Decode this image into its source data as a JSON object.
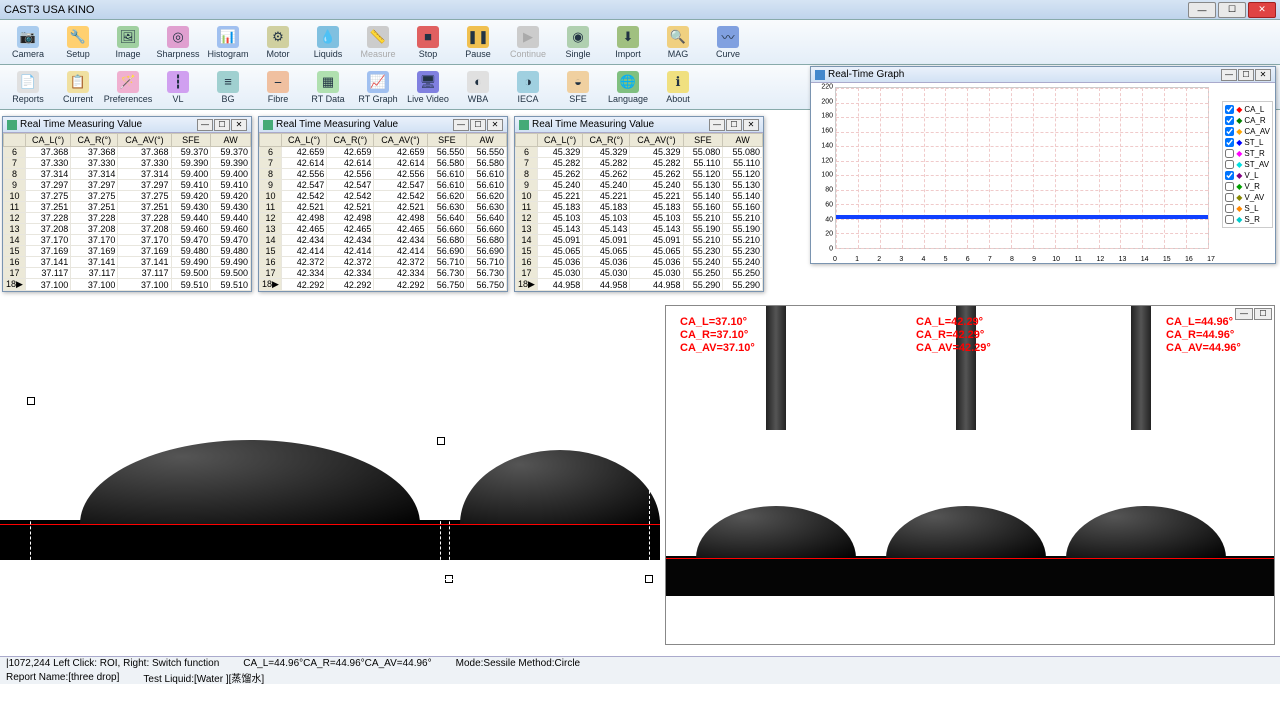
{
  "window": {
    "title": "CAST3  USA KINO"
  },
  "toolbars": {
    "row1": [
      {
        "label": "Camera",
        "icon": "📷",
        "color": "#aaccee"
      },
      {
        "label": "Setup",
        "icon": "🔧",
        "color": "#ffd070"
      },
      {
        "label": "Image",
        "icon": "🖼",
        "color": "#a0d0a0"
      },
      {
        "label": "Sharpness",
        "icon": "◎",
        "color": "#e0a0d0"
      },
      {
        "label": "Histogram",
        "icon": "📊",
        "color": "#a0c0f0"
      },
      {
        "label": "Motor",
        "icon": "⚙",
        "color": "#d0d0a0"
      },
      {
        "label": "Liquids",
        "icon": "💧",
        "color": "#80c0e0"
      },
      {
        "label": "Measure",
        "icon": "📏",
        "color": "#ccc",
        "dis": true
      },
      {
        "label": "Stop",
        "icon": "■",
        "color": "#e06060"
      },
      {
        "label": "Pause",
        "icon": "❚❚",
        "color": "#f0c050"
      },
      {
        "label": "Continue",
        "icon": "▶",
        "color": "#ccc",
        "dis": true
      },
      {
        "label": "Single",
        "icon": "◉",
        "color": "#b0d0b0"
      },
      {
        "label": "Import",
        "icon": "⬇",
        "color": "#a0c080"
      },
      {
        "label": "MAG",
        "icon": "🔍",
        "color": "#f0d080"
      },
      {
        "label": "Curve",
        "icon": "〰",
        "color": "#80a0e0"
      }
    ],
    "row2": [
      {
        "label": "Reports",
        "icon": "📄",
        "color": "#e0e0e0"
      },
      {
        "label": "Current",
        "icon": "📋",
        "color": "#f0e0a0"
      },
      {
        "label": "Preferences",
        "icon": "🪄",
        "color": "#f0b0d0"
      },
      {
        "label": "VL",
        "icon": "┇",
        "color": "#d0a0f0"
      },
      {
        "label": "BG",
        "icon": "≡",
        "color": "#a0d0d0"
      },
      {
        "label": "Fibre",
        "icon": "⎯",
        "color": "#f0c0a0"
      },
      {
        "label": "RT Data",
        "icon": "▦",
        "color": "#b0e0b0"
      },
      {
        "label": "RT Graph",
        "icon": "📈",
        "color": "#a0c0f0"
      },
      {
        "label": "Live Video",
        "icon": "🖥",
        "color": "#8080e0"
      },
      {
        "label": "WBA",
        "icon": "◐",
        "color": "#e0e0e0"
      },
      {
        "label": "IECA",
        "icon": "◑",
        "color": "#a0d0e0"
      },
      {
        "label": "SFE",
        "icon": "◒",
        "color": "#f0d0a0"
      },
      {
        "label": "Language",
        "icon": "🌐",
        "color": "#80c080"
      },
      {
        "label": "About",
        "icon": "ℹ",
        "color": "#f0e080"
      }
    ]
  },
  "panels": {
    "title": "Real Time Measuring Value",
    "headers": [
      "",
      "CA_L(°)",
      "CA_R(°)",
      "CA_AV(°)",
      "SFE",
      "AW"
    ],
    "p1": {
      "rows": [
        [
          "6",
          "37.368",
          "37.368",
          "37.368",
          "59.370",
          "59.370"
        ],
        [
          "7",
          "37.330",
          "37.330",
          "37.330",
          "59.390",
          "59.390"
        ],
        [
          "8",
          "37.314",
          "37.314",
          "37.314",
          "59.400",
          "59.400"
        ],
        [
          "9",
          "37.297",
          "37.297",
          "37.297",
          "59.410",
          "59.410"
        ],
        [
          "10",
          "37.275",
          "37.275",
          "37.275",
          "59.420",
          "59.420"
        ],
        [
          "11",
          "37.251",
          "37.251",
          "37.251",
          "59.430",
          "59.430"
        ],
        [
          "12",
          "37.228",
          "37.228",
          "37.228",
          "59.440",
          "59.440"
        ],
        [
          "13",
          "37.208",
          "37.208",
          "37.208",
          "59.460",
          "59.460"
        ],
        [
          "14",
          "37.170",
          "37.170",
          "37.170",
          "59.470",
          "59.470"
        ],
        [
          "15",
          "37.169",
          "37.169",
          "37.169",
          "59.480",
          "59.480"
        ],
        [
          "16",
          "37.141",
          "37.141",
          "37.141",
          "59.490",
          "59.490"
        ],
        [
          "17",
          "37.117",
          "37.117",
          "37.117",
          "59.500",
          "59.500"
        ],
        [
          "18▶",
          "37.100",
          "37.100",
          "37.100",
          "59.510",
          "59.510"
        ]
      ]
    },
    "p2": {
      "rows": [
        [
          "6",
          "42.659",
          "42.659",
          "42.659",
          "56.550",
          "56.550"
        ],
        [
          "7",
          "42.614",
          "42.614",
          "42.614",
          "56.580",
          "56.580"
        ],
        [
          "8",
          "42.556",
          "42.556",
          "42.556",
          "56.610",
          "56.610"
        ],
        [
          "9",
          "42.547",
          "42.547",
          "42.547",
          "56.610",
          "56.610"
        ],
        [
          "10",
          "42.542",
          "42.542",
          "42.542",
          "56.620",
          "56.620"
        ],
        [
          "11",
          "42.521",
          "42.521",
          "42.521",
          "56.630",
          "56.630"
        ],
        [
          "12",
          "42.498",
          "42.498",
          "42.498",
          "56.640",
          "56.640"
        ],
        [
          "13",
          "42.465",
          "42.465",
          "42.465",
          "56.660",
          "56.660"
        ],
        [
          "14",
          "42.434",
          "42.434",
          "42.434",
          "56.680",
          "56.680"
        ],
        [
          "15",
          "42.414",
          "42.414",
          "42.414",
          "56.690",
          "56.690"
        ],
        [
          "16",
          "42.372",
          "42.372",
          "42.372",
          "56.710",
          "56.710"
        ],
        [
          "17",
          "42.334",
          "42.334",
          "42.334",
          "56.730",
          "56.730"
        ],
        [
          "18▶",
          "42.292",
          "42.292",
          "42.292",
          "56.750",
          "56.750"
        ]
      ]
    },
    "p3": {
      "rows": [
        [
          "6",
          "45.329",
          "45.329",
          "45.329",
          "55.080",
          "55.080"
        ],
        [
          "7",
          "45.282",
          "45.282",
          "45.282",
          "55.110",
          "55.110"
        ],
        [
          "8",
          "45.262",
          "45.262",
          "45.262",
          "55.120",
          "55.120"
        ],
        [
          "9",
          "45.240",
          "45.240",
          "45.240",
          "55.130",
          "55.130"
        ],
        [
          "10",
          "45.221",
          "45.221",
          "45.221",
          "55.140",
          "55.140"
        ],
        [
          "11",
          "45.183",
          "45.183",
          "45.183",
          "55.160",
          "55.160"
        ],
        [
          "12",
          "45.103",
          "45.103",
          "45.103",
          "55.210",
          "55.210"
        ],
        [
          "13",
          "45.143",
          "45.143",
          "45.143",
          "55.190",
          "55.190"
        ],
        [
          "14",
          "45.091",
          "45.091",
          "45.091",
          "55.210",
          "55.210"
        ],
        [
          "15",
          "45.065",
          "45.065",
          "45.065",
          "55.230",
          "55.230"
        ],
        [
          "16",
          "45.036",
          "45.036",
          "45.036",
          "55.240",
          "55.240"
        ],
        [
          "17",
          "45.030",
          "45.030",
          "45.030",
          "55.250",
          "55.250"
        ],
        [
          "18▶",
          "44.958",
          "44.958",
          "44.958",
          "55.290",
          "55.290"
        ]
      ]
    }
  },
  "graph": {
    "title": "Real-Time Graph",
    "ylim": [
      0,
      220
    ],
    "ytick_step": 20,
    "xlim": [
      0,
      17
    ],
    "xtick_step": 1,
    "data_y": 45,
    "series": [
      {
        "name": "CA_L",
        "color": "#ff0000",
        "checked": true
      },
      {
        "name": "CA_R",
        "color": "#008000",
        "checked": true
      },
      {
        "name": "CA_AV",
        "color": "#ffa500",
        "checked": true
      },
      {
        "name": "ST_L",
        "color": "#0000ff",
        "checked": true
      },
      {
        "name": "ST_R",
        "color": "#ff00ff",
        "checked": false
      },
      {
        "name": "ST_AV",
        "color": "#00e0e0",
        "checked": false
      },
      {
        "name": "V_L",
        "color": "#800080",
        "checked": true
      },
      {
        "name": "V_R",
        "color": "#00a000",
        "checked": false
      },
      {
        "name": "V_AV",
        "color": "#888800",
        "checked": false
      },
      {
        "name": "S_L",
        "color": "#ff8800",
        "checked": false
      },
      {
        "name": "S_R",
        "color": "#00cccc",
        "checked": false
      }
    ]
  },
  "overlays": {
    "set1": [
      "CA_L=37.10°",
      "CA_R=37.10°",
      "CA_AV=37.10°"
    ],
    "set2": [
      "CA_L=42.29°",
      "CA_R=42.29°",
      "CA_AV=42.29°"
    ],
    "set3": [
      "CA_L=44.96°",
      "CA_R=44.96°",
      "CA_AV=44.96°"
    ]
  },
  "status": {
    "coords": "|1072,244  Left Click: ROI, Right: Switch function",
    "angles": "CA_L=44.96°CA_R=44.96°CA_AV=44.96°",
    "mode": "Mode:Sessile  Method:Circle",
    "report": "Report Name:[three drop]",
    "liquid": "Test Liquid:[Water ][蒸馏水]"
  }
}
